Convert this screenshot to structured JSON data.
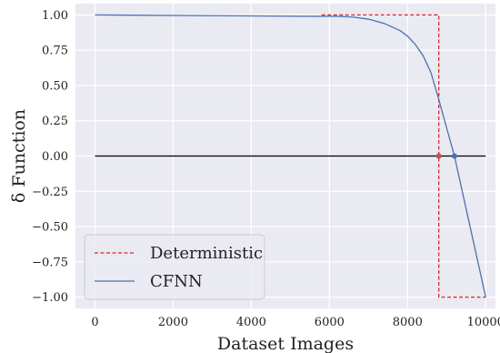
{
  "chart_data": {
    "type": "line",
    "xlabel": "Dataset Images",
    "ylabel": "δ Function",
    "xlim": [
      -500,
      10250
    ],
    "ylim": [
      -1.08,
      1.08
    ],
    "xticks": [
      0,
      2000,
      4000,
      6000,
      8000,
      10000
    ],
    "xtick_labels": [
      "0",
      "2000",
      "4000",
      "6000",
      "8000",
      "10000"
    ],
    "yticks": [
      1.0,
      0.75,
      0.5,
      0.25,
      0.0,
      -0.25,
      -0.5,
      -0.75,
      -1.0
    ],
    "ytick_labels": [
      "1.00",
      "0.75",
      "0.50",
      "0.25",
      "0.00",
      "−0.25",
      "−0.50",
      "−0.75",
      "−1.00"
    ],
    "grid": true,
    "legend_position": "bottom-left",
    "colors": {
      "background": "#eaeaf2",
      "grid": "#ffffff",
      "deterministic": "#d62728",
      "cfnn": "#4c72b0",
      "zero_line": "#000000",
      "det_marker": "#c44e52",
      "cfnn_marker": "#4c72b0"
    },
    "series": [
      {
        "name": "Deterministic",
        "style": "dashed",
        "x": [
          5800,
          8800,
          8800,
          10000
        ],
        "y": [
          1.0,
          1.0,
          -1.0,
          -1.0
        ]
      },
      {
        "name": "CFNN",
        "style": "solid",
        "x": [
          0,
          5800,
          6200,
          6600,
          7000,
          7400,
          7800,
          8000,
          8200,
          8400,
          8600,
          8800,
          9000,
          9200,
          9400,
          9600,
          9800,
          10000
        ],
        "y": [
          1.0,
          0.99,
          0.99,
          0.985,
          0.97,
          0.94,
          0.89,
          0.85,
          0.79,
          0.71,
          0.59,
          0.4,
          0.2,
          0.0,
          -0.25,
          -0.5,
          -0.75,
          -1.0
        ]
      }
    ],
    "zero_line": {
      "x": [
        0,
        10000
      ],
      "y": [
        0,
        0
      ]
    },
    "markers": [
      {
        "name": "Deterministic crossing",
        "x": 8800,
        "y": 0,
        "color": "#c44e52"
      },
      {
        "name": "CFNN crossing",
        "x": 9200,
        "y": 0,
        "color": "#4c72b0"
      }
    ]
  }
}
